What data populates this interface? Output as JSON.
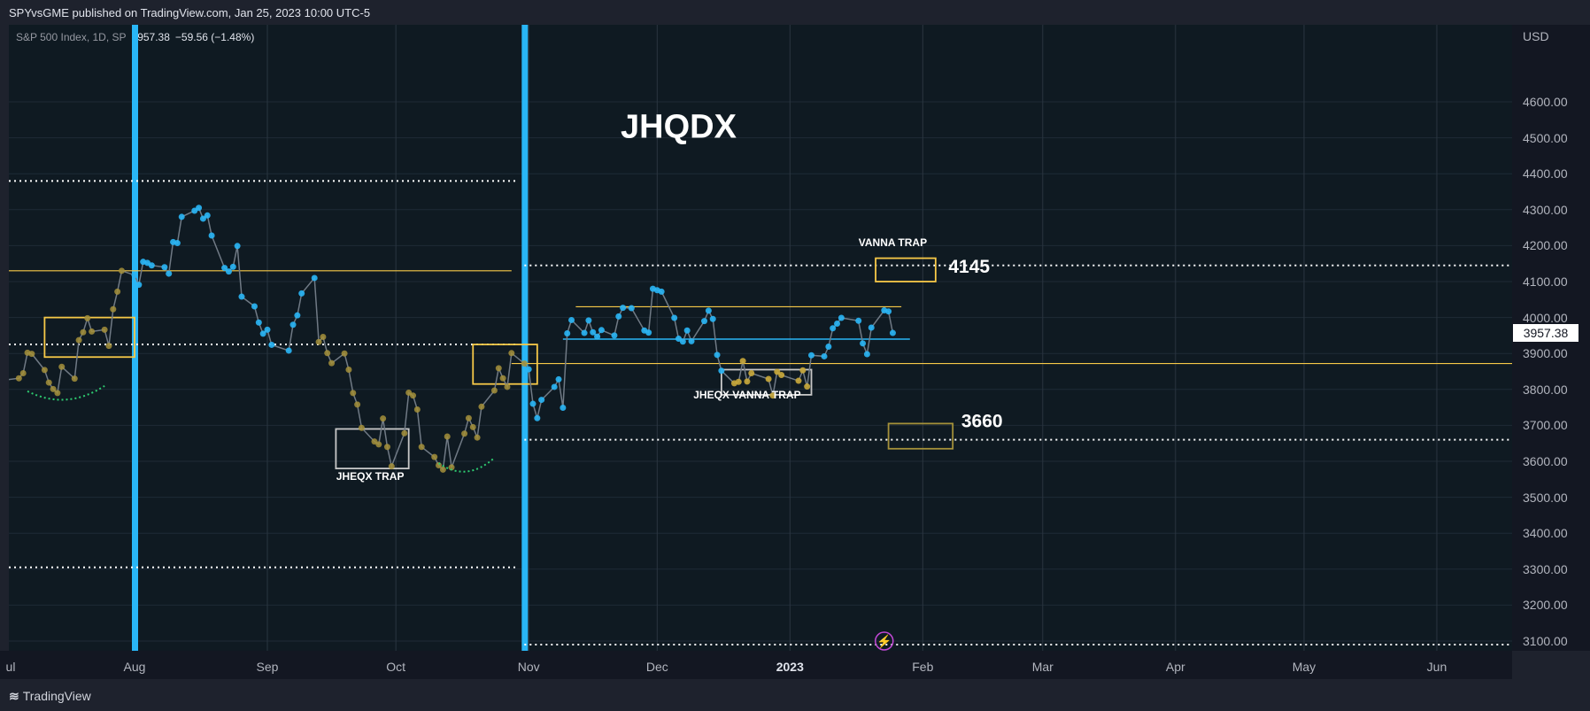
{
  "header": {
    "published": "SPYvsGME published on TradingView.com, Jan 25, 2023 10:00 UTC-5"
  },
  "legend": {
    "symbol": "S&P 500 Index, 1D, SP",
    "last": "3957.38",
    "change": "−59.56 (−1.48%)"
  },
  "axis": {
    "currency": "USD"
  },
  "price_tag": "3957.38",
  "footer": {
    "brand": "TradingView"
  },
  "colors": {
    "background": "#0f1a22",
    "blue_line": "#29b6f6",
    "yellow": "#f7c948",
    "olive": "#a5913a",
    "white_dotted": "#ffffff",
    "green_dotted": "#2ecc71",
    "series_line": "#707a85"
  },
  "chart_data": {
    "type": "line",
    "title": "JHQDX",
    "ylim": [
      3070,
      4700
    ],
    "yticks": [
      4600,
      4500,
      4400,
      4300,
      4200,
      4100,
      4000,
      3900,
      3800,
      3700,
      3600,
      3500,
      3400,
      3300,
      3200,
      3100
    ],
    "ytick_labels": [
      "4600.00",
      "4500.00",
      "4400.00",
      "4300.00",
      "4200.00",
      "4100.00",
      "4000.00",
      "3900.00",
      "3800.00",
      "3700.00",
      "3600.00",
      "3500.00",
      "3400.00",
      "3300.00",
      "3200.00",
      "3100.00"
    ],
    "xticks": [
      {
        "label": "ul",
        "date": "2022-07-01"
      },
      {
        "label": "Aug",
        "date": "2022-08-01"
      },
      {
        "label": "Sep",
        "date": "2022-09-01"
      },
      {
        "label": "Oct",
        "date": "2022-10-01"
      },
      {
        "label": "Nov",
        "date": "2022-11-01"
      },
      {
        "label": "Dec",
        "date": "2022-12-01"
      },
      {
        "label": "2023",
        "date": "2023-01-01",
        "bold": true
      },
      {
        "label": "Feb",
        "date": "2023-02-01"
      },
      {
        "label": "Mar",
        "date": "2023-03-01"
      },
      {
        "label": "Apr",
        "date": "2023-04-01"
      },
      {
        "label": "May",
        "date": "2023-05-01"
      },
      {
        "label": "Jun",
        "date": "2023-06-01"
      }
    ],
    "series": [
      {
        "points": [
          [
            "2022-07-01",
            3825
          ],
          [
            "2022-07-05",
            3831
          ],
          [
            "2022-07-06",
            3845
          ],
          [
            "2022-07-07",
            3902
          ],
          [
            "2022-07-08",
            3899
          ],
          [
            "2022-07-11",
            3854
          ],
          [
            "2022-07-12",
            3819
          ],
          [
            "2022-07-13",
            3801
          ],
          [
            "2022-07-14",
            3790
          ],
          [
            "2022-07-15",
            3863
          ],
          [
            "2022-07-18",
            3830
          ],
          [
            "2022-07-19",
            3937
          ],
          [
            "2022-07-20",
            3959
          ],
          [
            "2022-07-21",
            3998
          ],
          [
            "2022-07-22",
            3961
          ],
          [
            "2022-07-25",
            3966
          ],
          [
            "2022-07-26",
            3921
          ],
          [
            "2022-07-27",
            4023
          ],
          [
            "2022-07-28",
            4072
          ],
          [
            "2022-07-29",
            4130
          ],
          [
            "2022-08-01",
            4118
          ],
          [
            "2022-08-02",
            4091
          ],
          [
            "2022-08-03",
            4155
          ],
          [
            "2022-08-04",
            4152
          ],
          [
            "2022-08-05",
            4145
          ],
          [
            "2022-08-08",
            4140
          ],
          [
            "2022-08-09",
            4122
          ],
          [
            "2022-08-10",
            4210
          ],
          [
            "2022-08-11",
            4207
          ],
          [
            "2022-08-12",
            4280
          ],
          [
            "2022-08-15",
            4297
          ],
          [
            "2022-08-16",
            4305
          ],
          [
            "2022-08-17",
            4275
          ],
          [
            "2022-08-18",
            4284
          ],
          [
            "2022-08-19",
            4228
          ],
          [
            "2022-08-22",
            4138
          ],
          [
            "2022-08-23",
            4128
          ],
          [
            "2022-08-24",
            4141
          ],
          [
            "2022-08-25",
            4199
          ],
          [
            "2022-08-26",
            4058
          ],
          [
            "2022-08-29",
            4031
          ],
          [
            "2022-08-30",
            3986
          ],
          [
            "2022-08-31",
            3955
          ],
          [
            "2022-09-01",
            3966
          ],
          [
            "2022-09-02",
            3924
          ],
          [
            "2022-09-06",
            3908
          ],
          [
            "2022-09-07",
            3980
          ],
          [
            "2022-09-08",
            4006
          ],
          [
            "2022-09-09",
            4067
          ],
          [
            "2022-09-12",
            4110
          ],
          [
            "2022-09-13",
            3932
          ],
          [
            "2022-09-14",
            3946
          ],
          [
            "2022-09-15",
            3901
          ],
          [
            "2022-09-16",
            3873
          ],
          [
            "2022-09-19",
            3900
          ],
          [
            "2022-09-20",
            3855
          ],
          [
            "2022-09-21",
            3790
          ],
          [
            "2022-09-22",
            3758
          ],
          [
            "2022-09-23",
            3693
          ],
          [
            "2022-09-26",
            3655
          ],
          [
            "2022-09-27",
            3647
          ],
          [
            "2022-09-28",
            3719
          ],
          [
            "2022-09-29",
            3640
          ],
          [
            "2022-09-30",
            3586
          ],
          [
            "2022-10-03",
            3678
          ],
          [
            "2022-10-04",
            3791
          ],
          [
            "2022-10-05",
            3783
          ],
          [
            "2022-10-06",
            3744
          ],
          [
            "2022-10-07",
            3640
          ],
          [
            "2022-10-10",
            3612
          ],
          [
            "2022-10-11",
            3589
          ],
          [
            "2022-10-12",
            3577
          ],
          [
            "2022-10-13",
            3669
          ],
          [
            "2022-10-14",
            3583
          ],
          [
            "2022-10-17",
            3677
          ],
          [
            "2022-10-18",
            3720
          ],
          [
            "2022-10-19",
            3695
          ],
          [
            "2022-10-20",
            3666
          ],
          [
            "2022-10-21",
            3752
          ],
          [
            "2022-10-24",
            3797
          ],
          [
            "2022-10-25",
            3859
          ],
          [
            "2022-10-26",
            3831
          ],
          [
            "2022-10-27",
            3807
          ],
          [
            "2022-10-28",
            3901
          ],
          [
            "2022-10-31",
            3872
          ],
          [
            "2022-11-01",
            3856
          ],
          [
            "2022-11-02",
            3760
          ],
          [
            "2022-11-03",
            3720
          ],
          [
            "2022-11-04",
            3771
          ],
          [
            "2022-11-07",
            3807
          ],
          [
            "2022-11-08",
            3828
          ],
          [
            "2022-11-09",
            3749
          ],
          [
            "2022-11-10",
            3956
          ],
          [
            "2022-11-11",
            3993
          ],
          [
            "2022-11-14",
            3957
          ],
          [
            "2022-11-15",
            3992
          ],
          [
            "2022-11-16",
            3959
          ],
          [
            "2022-11-17",
            3947
          ],
          [
            "2022-11-18",
            3965
          ],
          [
            "2022-11-21",
            3950
          ],
          [
            "2022-11-22",
            4003
          ],
          [
            "2022-11-23",
            4027
          ],
          [
            "2022-11-25",
            4026
          ],
          [
            "2022-11-28",
            3964
          ],
          [
            "2022-11-29",
            3958
          ],
          [
            "2022-11-30",
            4080
          ],
          [
            "2022-12-01",
            4076
          ],
          [
            "2022-12-02",
            4072
          ],
          [
            "2022-12-05",
            3999
          ],
          [
            "2022-12-06",
            3941
          ],
          [
            "2022-12-07",
            3933
          ],
          [
            "2022-12-08",
            3964
          ],
          [
            "2022-12-09",
            3934
          ],
          [
            "2022-12-12",
            3990
          ],
          [
            "2022-12-13",
            4019
          ],
          [
            "2022-12-14",
            3996
          ],
          [
            "2022-12-15",
            3896
          ],
          [
            "2022-12-16",
            3852
          ],
          [
            "2022-12-19",
            3817
          ],
          [
            "2022-12-20",
            3821
          ],
          [
            "2022-12-21",
            3879
          ],
          [
            "2022-12-22",
            3822
          ],
          [
            "2022-12-23",
            3845
          ],
          [
            "2022-12-27",
            3829
          ],
          [
            "2022-12-28",
            3783
          ],
          [
            "2022-12-29",
            3849
          ],
          [
            "2022-12-30",
            3840
          ],
          [
            "2023-01-03",
            3824
          ],
          [
            "2023-01-04",
            3853
          ],
          [
            "2023-01-05",
            3808
          ],
          [
            "2023-01-06",
            3895
          ],
          [
            "2023-01-09",
            3892
          ],
          [
            "2023-01-10",
            3919
          ],
          [
            "2023-01-11",
            3970
          ],
          [
            "2023-01-12",
            3983
          ],
          [
            "2023-01-13",
            3999
          ],
          [
            "2023-01-17",
            3991
          ],
          [
            "2023-01-18",
            3928
          ],
          [
            "2023-01-19",
            3898
          ],
          [
            "2023-01-20",
            3972
          ],
          [
            "2023-01-23",
            4020
          ],
          [
            "2023-01-24",
            4017
          ],
          [
            "2023-01-25",
            3957
          ]
        ]
      }
    ],
    "annotations": {
      "labels": [
        {
          "text": "JHQDX",
          "date": "2022-12-06",
          "price": 4500,
          "size": "title"
        },
        {
          "text": "VANNA TRAP",
          "date": "2023-01-25",
          "price": 4198,
          "size": "small"
        },
        {
          "text": "4145",
          "date": "2023-02-07",
          "price": 4125,
          "size": "large"
        },
        {
          "text": "3660",
          "date": "2023-02-10",
          "price": 3695,
          "size": "large"
        },
        {
          "text": "JHEQX TRAP",
          "date": "2022-09-25",
          "price": 3548,
          "size": "small"
        },
        {
          "text": "JHEQX VANNA TRAP",
          "date": "2022-12-22",
          "price": 3775,
          "size": "small"
        }
      ],
      "vertical_bars": [
        {
          "date": "2022-08-01"
        },
        {
          "date": "2022-10-31"
        }
      ],
      "hlines_dotted_white": [
        {
          "price": 4380,
          "from": "2022-07-01",
          "to": "2022-10-29"
        },
        {
          "price": 3925,
          "from": "2022-07-01",
          "to": "2022-10-29"
        },
        {
          "price": 3305,
          "from": "2022-07-01",
          "to": "2022-10-29"
        },
        {
          "price": 4145,
          "from": "2022-10-31",
          "to": "2023-06-30"
        },
        {
          "price": 3660,
          "from": "2022-10-31",
          "to": "2023-06-30"
        },
        {
          "price": 3090,
          "from": "2022-10-31",
          "to": "2023-06-30"
        }
      ],
      "hlines_yellow": [
        {
          "price": 4130,
          "from": "2022-07-01",
          "to": "2022-10-28"
        },
        {
          "price": 3872,
          "from": "2022-10-28",
          "to": "2023-06-30"
        },
        {
          "price": 4030,
          "from": "2022-11-12",
          "to": "2023-01-27"
        }
      ],
      "hlines_blue": [
        {
          "price": 3940,
          "from": "2022-11-09",
          "to": "2023-01-29"
        }
      ],
      "boxes": [
        {
          "from": "2022-07-11",
          "to": "2022-08-01",
          "top": 4000,
          "bottom": 3890,
          "color": "yellow"
        },
        {
          "from": "2022-10-19",
          "to": "2022-11-03",
          "top": 3925,
          "bottom": 3815,
          "color": "yellow"
        },
        {
          "from": "2023-01-21",
          "to": "2023-02-04",
          "top": 4165,
          "bottom": 4100,
          "color": "yellow"
        },
        {
          "from": "2023-01-24",
          "to": "2023-02-08",
          "top": 3705,
          "bottom": 3635,
          "color": "olive"
        },
        {
          "from": "2022-09-17",
          "to": "2022-10-04",
          "top": 3690,
          "bottom": 3580,
          "color": "gray"
        },
        {
          "from": "2022-12-16",
          "to": "2023-01-06",
          "top": 3855,
          "bottom": 3785,
          "color": "gray"
        }
      ]
    }
  }
}
